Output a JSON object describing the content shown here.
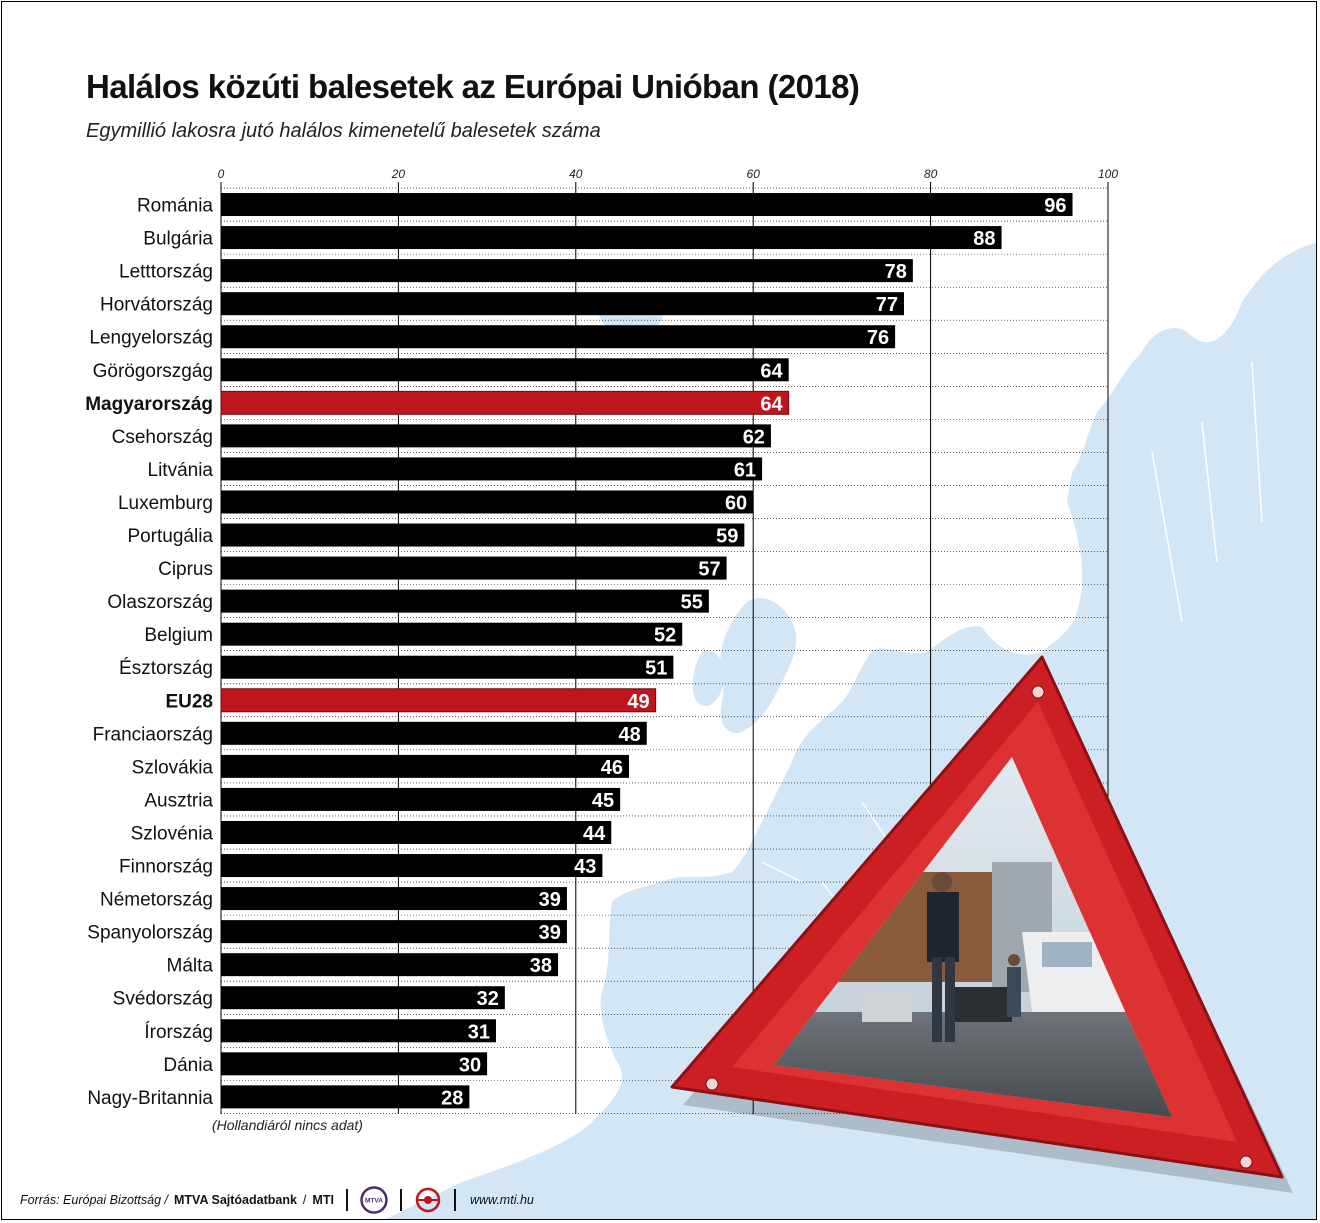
{
  "title": "Halálos közúti balesetek az Európai Unióban (2018)",
  "subtitle": "Egymillió lakosra jutó halálos kimenetelű balesetek száma",
  "note": "(Hollandiáról nincs adat)",
  "footer": {
    "source_prefix": "Forrás: Európai Bizottság / ",
    "source_agency": "MTVA Sajtóadatbank",
    "source_slash": " / ",
    "source_mti": "MTI",
    "logo1_text": "MTVA",
    "url": "www.mti.hu"
  },
  "colors": {
    "bar": "#000000",
    "highlight": "#c0151c",
    "map": "#d2e6f5",
    "grid": "#000000",
    "triangle": "#cc1f24"
  },
  "icons": [
    "warning-triangle-icon",
    "mtva-logo-icon",
    "mti-logo-icon"
  ],
  "chart_data": {
    "type": "bar",
    "orientation": "horizontal",
    "categories": [
      "Románia",
      "Bulgária",
      "Letttország",
      "Horvátország",
      "Lengyelország",
      "Görögorszgág",
      "Magyarország",
      "Csehország",
      "Litvánia",
      "Luxemburg",
      "Portugália",
      "Ciprus",
      "Olaszország",
      "Belgium",
      "Észtország",
      "EU28",
      "Franciaország",
      "Szlovákia",
      "Ausztria",
      "Szlovénia",
      "Finnország",
      "Németország",
      "Spanyolország",
      "Málta",
      "Svédország",
      "Írország",
      "Dánia",
      "Nagy-Britannia"
    ],
    "values": [
      96,
      88,
      78,
      77,
      76,
      64,
      64,
      62,
      61,
      60,
      59,
      57,
      55,
      52,
      51,
      49,
      48,
      46,
      45,
      44,
      43,
      39,
      39,
      38,
      32,
      31,
      30,
      28
    ],
    "highlighted": [
      "Magyarország",
      "EU28"
    ],
    "xlim": [
      0,
      100
    ],
    "xticks": [
      "0",
      "20",
      "40",
      "60",
      "80",
      "100"
    ],
    "xtick_values": [
      0,
      20,
      40,
      60,
      80,
      100
    ],
    "xlabel": "",
    "ylabel": "",
    "grid": true,
    "axis_position": "top"
  }
}
